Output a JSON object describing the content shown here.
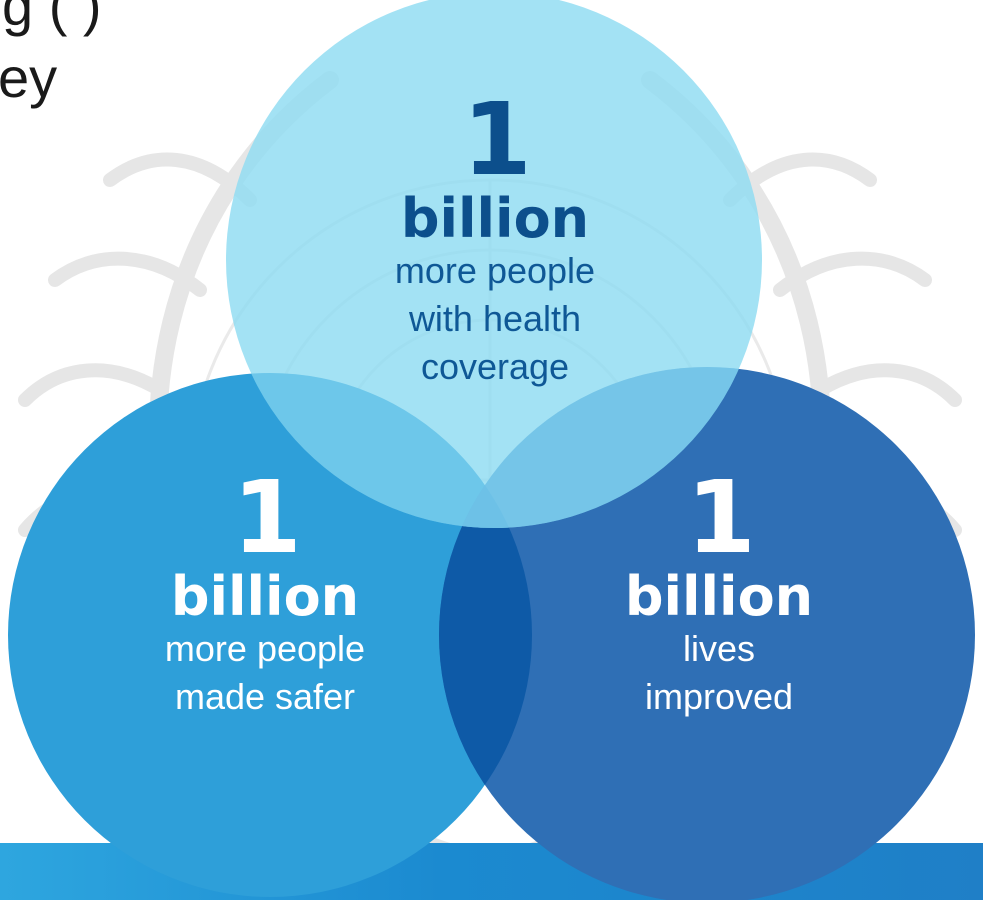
{
  "heading": {
    "line1": "g             (              )",
    "line2": "ey"
  },
  "emblem": "un-emblem-watermark",
  "colors": {
    "top_circle": "#8fdcf2",
    "left_circle": "#2e9fd9",
    "right_circle": "#2f6fb5",
    "overlap_dark": "#0e5aa7",
    "top_text": "#0c4f8c",
    "band": "#1b8ad0"
  },
  "circles": {
    "top": {
      "number": "1",
      "unit": "billion",
      "desc_lines": [
        "more people",
        "with health",
        "coverage"
      ]
    },
    "left": {
      "number": "1",
      "unit": "billion",
      "desc_lines": [
        "more people",
        "made safer"
      ]
    },
    "right": {
      "number": "1",
      "unit": "billion",
      "desc_lines": [
        "lives",
        "improved"
      ]
    }
  }
}
